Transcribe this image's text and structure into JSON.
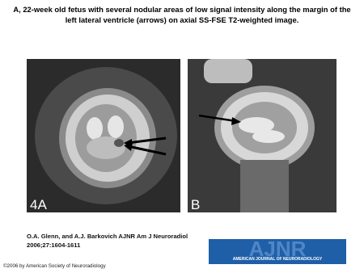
{
  "header": {
    "title": "A, 22-week old fetus with several nodular areas of low signal intensity along the margin of the left lateral ventricle (arrows) on axial SS-FSE T2-weighted image."
  },
  "figure": {
    "panels": [
      {
        "label": "4A"
      },
      {
        "label": "B"
      }
    ]
  },
  "citation": {
    "lines": [
      "O.A. Glenn, and A.J. Barkovich AJNR Am J Neuroradiol",
      "2006;27:1604-1611"
    ]
  },
  "logo": {
    "name": "AJNR",
    "subtitle": "AMERICAN JOURNAL OF NEURORADIOLOGY"
  },
  "footer": {
    "copyright": "©2006 by American Society of Neuroradiology"
  }
}
